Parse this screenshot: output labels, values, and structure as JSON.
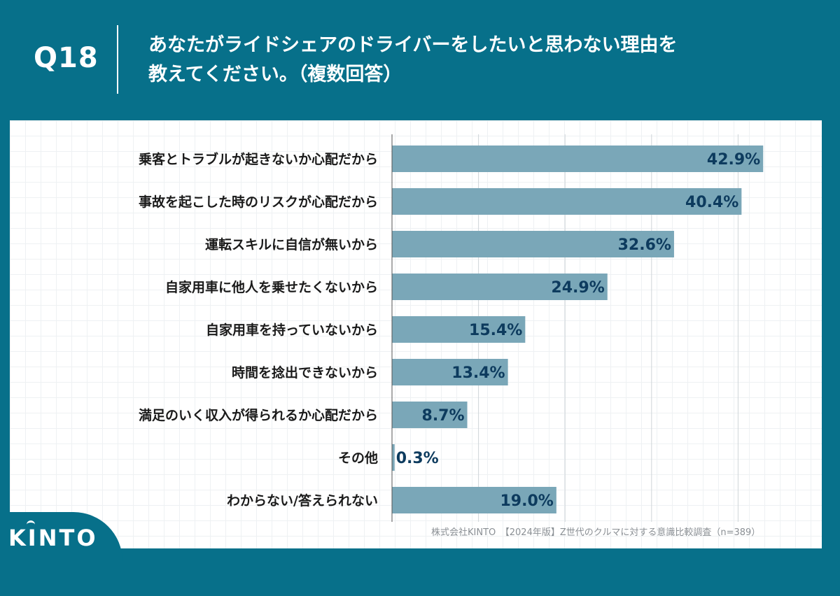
{
  "header": {
    "question_label": "Q18",
    "title_line1": "あなたがライドシェアのドライバーをしたいと思わない理由を",
    "title_line2": "教えてください。（複数回答）"
  },
  "chart_data": {
    "type": "bar",
    "orientation": "horizontal",
    "categories": [
      "乗客とトラブルが起きないか心配だから",
      "事故を起こした時のリスクが心配だから",
      "運転スキルに自信が無いから",
      "自家用車に他人を乗せたくないから",
      "自家用車を持っていないから",
      "時間を捻出できないから",
      "満足のいく収入が得られるか心配だから",
      "その他",
      "わからない/答えられない"
    ],
    "values": [
      42.9,
      40.4,
      32.6,
      24.9,
      15.4,
      13.4,
      8.7,
      0.3,
      19.0
    ],
    "value_labels": [
      "42.9%",
      "40.4%",
      "32.6%",
      "24.9%",
      "15.4%",
      "13.4%",
      "8.7%",
      "0.3%",
      "19.0%"
    ],
    "xlim": [
      0,
      50
    ],
    "grid": true,
    "bar_color": "#7aa7b8",
    "label_color": "#0d3b5e"
  },
  "footer": {
    "source": "株式会社KINTO　【2024年版】Z世代のクルマに対する意識比較調査（n=389）"
  },
  "logo": {
    "text": "KINTO"
  }
}
